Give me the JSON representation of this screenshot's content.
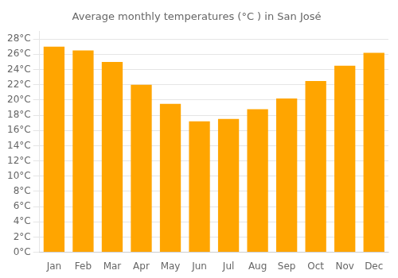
{
  "chart_data": {
    "type": "bar",
    "title": "Average monthly temperatures (°C ) in San José",
    "categories": [
      "Jan",
      "Feb",
      "Mar",
      "Apr",
      "May",
      "Jun",
      "Jul",
      "Aug",
      "Sep",
      "Oct",
      "Nov",
      "Dec"
    ],
    "values": [
      27.0,
      26.5,
      25.0,
      22.0,
      19.5,
      17.2,
      17.5,
      18.8,
      20.2,
      22.5,
      24.5,
      26.2
    ],
    "color": "#FFA500",
    "ylim": [
      0,
      29
    ],
    "yticks": [
      {
        "value": 0,
        "label": "0°C"
      },
      {
        "value": 2,
        "label": "2°C"
      },
      {
        "value": 4,
        "label": "4°C"
      },
      {
        "value": 6,
        "label": "6°C"
      },
      {
        "value": 8,
        "label": "8°C"
      },
      {
        "value": 10,
        "label": "10°C"
      },
      {
        "value": 12,
        "label": "12°C"
      },
      {
        "value": 14,
        "label": "14°C"
      },
      {
        "value": 16,
        "label": "16°C"
      },
      {
        "value": 18,
        "label": "18°C"
      },
      {
        "value": 20,
        "label": "20°C"
      },
      {
        "value": 22,
        "label": "22°C"
      },
      {
        "value": 24,
        "label": "24°C"
      },
      {
        "value": 26,
        "label": "26°C"
      },
      {
        "value": 28,
        "label": "28°C"
      }
    ],
    "grid": true
  }
}
